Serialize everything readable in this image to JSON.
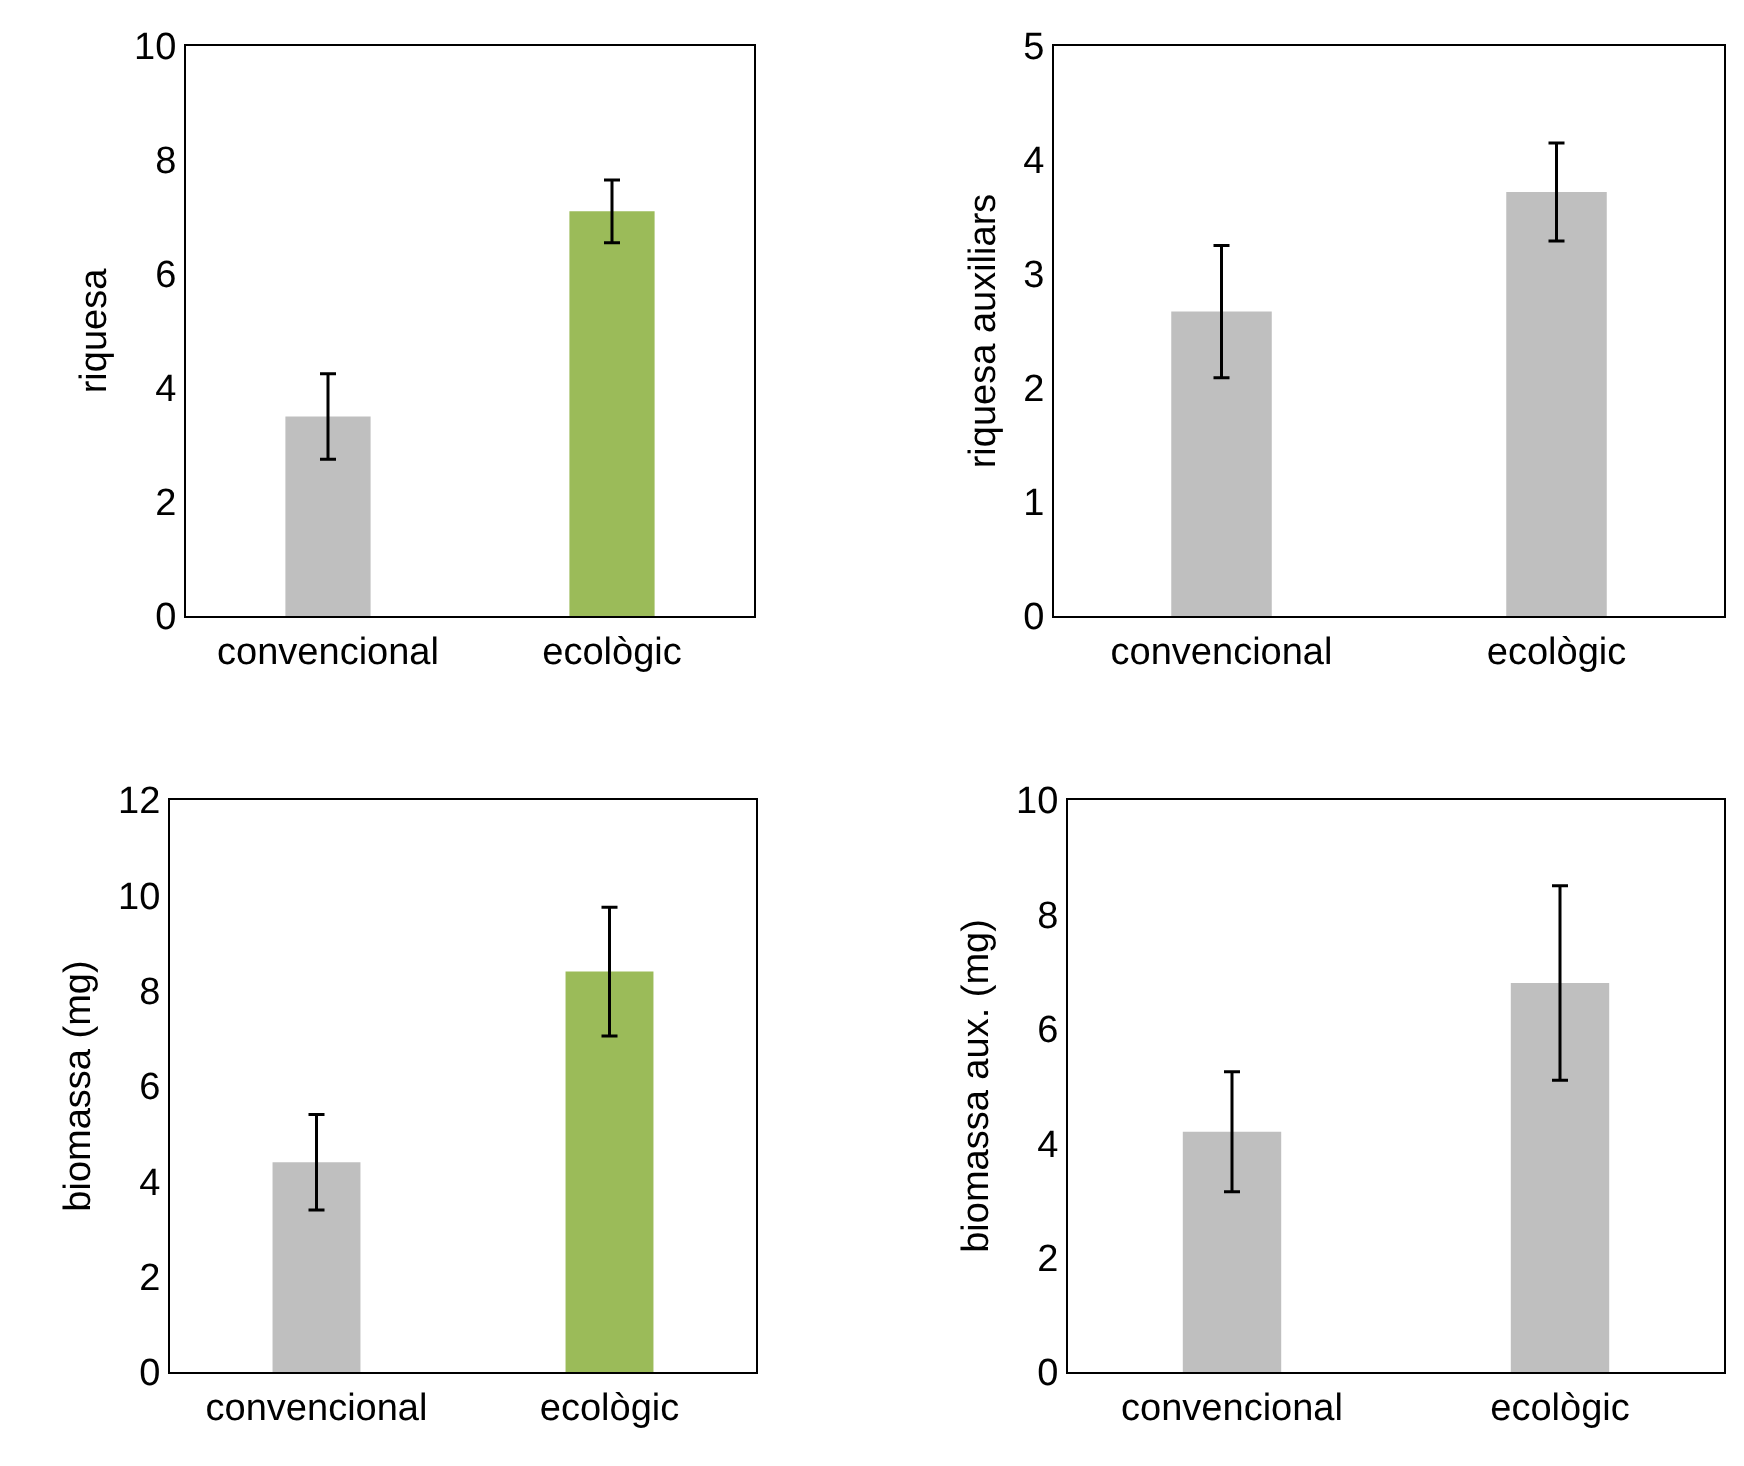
{
  "chart_data": [
    {
      "type": "bar",
      "ylabel": "riquesa",
      "categories": [
        "convencional",
        "ecològic"
      ],
      "values": [
        3.5,
        7.1
      ],
      "colors": [
        "#bfbfbf",
        "#9bbb59"
      ],
      "errors": [
        0.75,
        0.55
      ],
      "ylim": [
        0,
        10
      ],
      "yticks": [
        0,
        2,
        4,
        6,
        8,
        10
      ],
      "grid": false,
      "legend": false
    },
    {
      "type": "bar",
      "ylabel": "riquesa auxiliars",
      "categories": [
        "convencional",
        "ecològic"
      ],
      "values": [
        2.67,
        3.72
      ],
      "colors": [
        "#bfbfbf",
        "#bfbfbf"
      ],
      "errors": [
        0.58,
        0.43
      ],
      "ylim": [
        0,
        5
      ],
      "yticks": [
        0,
        1,
        2,
        3,
        4,
        5
      ],
      "grid": false,
      "legend": false
    },
    {
      "type": "bar",
      "ylabel": "biomassa (mg)",
      "categories": [
        "convencional",
        "ecològic"
      ],
      "values": [
        4.4,
        8.4
      ],
      "colors": [
        "#bfbfbf",
        "#9bbb59"
      ],
      "errors": [
        1.0,
        1.35
      ],
      "ylim": [
        0,
        12
      ],
      "yticks": [
        0,
        2,
        4,
        6,
        8,
        10,
        12
      ],
      "grid": false,
      "legend": false
    },
    {
      "type": "bar",
      "ylabel": "biomassa aux. (mg)",
      "categories": [
        "convencional",
        "ecològic"
      ],
      "values": [
        4.2,
        6.8
      ],
      "colors": [
        "#bfbfbf",
        "#bfbfbf"
      ],
      "errors": [
        1.05,
        1.7
      ],
      "ylim": [
        0,
        10
      ],
      "yticks": [
        0,
        2,
        4,
        6,
        8,
        10
      ],
      "grid": false,
      "legend": false
    }
  ]
}
